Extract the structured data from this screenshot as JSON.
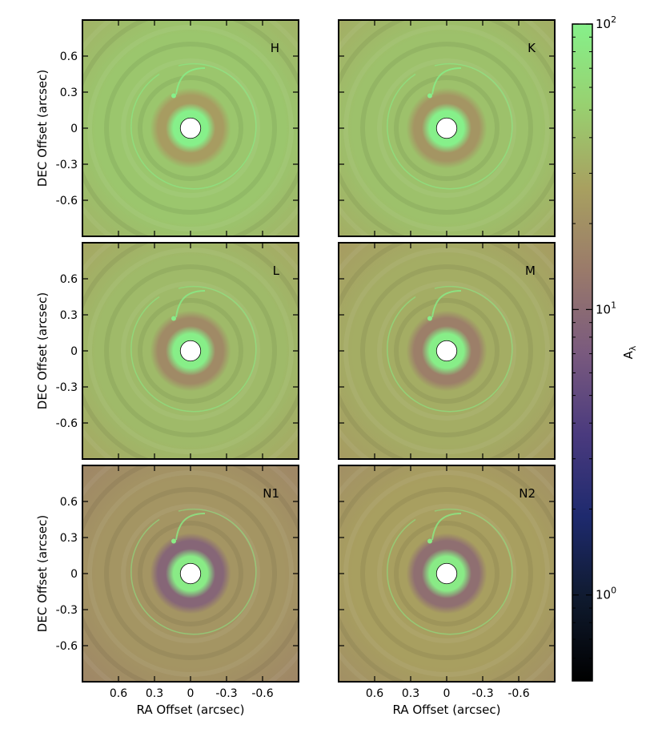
{
  "colors": {
    "ring_dark": "#8a5a72",
    "disk_bright": "#86f08a",
    "background_mid": "#a08a6a",
    "occulter": "#ffffff",
    "colorbar_stops": [
      "#000000",
      "#0f1a2e",
      "#1e2a6e",
      "#4a3a7e",
      "#7a5a7e",
      "#9a7a6a",
      "#a8a060",
      "#98d070",
      "#86f08a"
    ]
  },
  "chart_data": {
    "type": "heatmap",
    "title": "",
    "xlabel": "RA Offset (arcsec)",
    "ylabel": "DEC Offset (arcsec)",
    "xlim": [
      0.9,
      -0.9
    ],
    "ylim": [
      -0.9,
      0.9
    ],
    "x_ticks": [
      0.6,
      0.3,
      0,
      -0.3,
      -0.6
    ],
    "x_tick_labels": [
      "0.6",
      "0.3",
      "0",
      "-0.3",
      "-0.6"
    ],
    "y_ticks": [
      0.6,
      0.3,
      0,
      -0.3,
      -0.6
    ],
    "y_tick_labels": [
      "0.6",
      "0.3",
      "0",
      "-0.3",
      "-0.6"
    ],
    "colorbar": {
      "label": "A",
      "label_subscript": "λ",
      "scale": "log",
      "range": [
        0.5,
        100
      ],
      "major_ticks": [
        {
          "value": 1,
          "base": "10",
          "exp": "0"
        },
        {
          "value": 10,
          "base": "10",
          "exp": "1"
        },
        {
          "value": 100,
          "base": "10",
          "exp": "2"
        }
      ]
    },
    "panels": [
      {
        "label": "H",
        "ring_value": 25,
        "disk_value": 100,
        "background_value": 45
      },
      {
        "label": "K",
        "ring_value": 22,
        "disk_value": 100,
        "background_value": 42
      },
      {
        "label": "L",
        "ring_value": 18,
        "disk_value": 95,
        "background_value": 38
      },
      {
        "label": "M",
        "ring_value": 15,
        "disk_value": 95,
        "background_value": 32
      },
      {
        "label": "N1",
        "ring_value": 9,
        "disk_value": 90,
        "background_value": 22
      },
      {
        "label": "N2",
        "ring_value": 11,
        "disk_value": 90,
        "background_value": 26
      }
    ]
  }
}
